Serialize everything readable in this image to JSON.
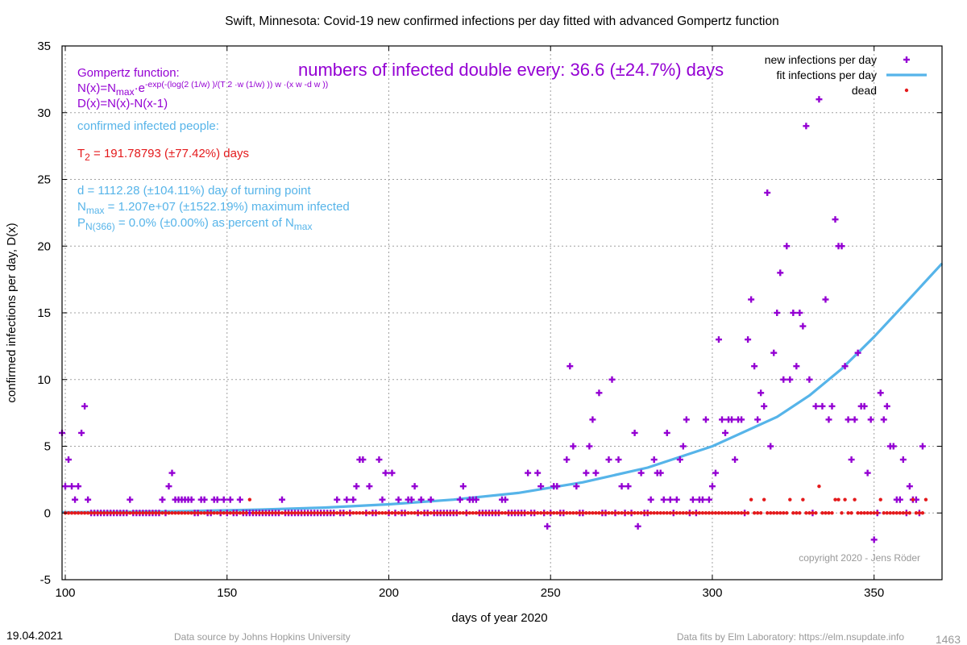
{
  "chart_data": {
    "type": "scatter",
    "title": "Swift,  Minnesota: Covid-19 new confirmed infections per day fitted with advanced Gompertz function",
    "xlabel": "days of year 2020",
    "ylabel": "confirmed infections per day, D(x)",
    "xlim": [
      99,
      371
    ],
    "ylim": [
      -5,
      35
    ],
    "x_ticks": [
      100,
      150,
      200,
      250,
      300,
      350
    ],
    "y_ticks": [
      -5,
      0,
      5,
      10,
      15,
      20,
      25,
      30,
      35
    ],
    "grid": true,
    "legend_position": "top-right",
    "series": [
      {
        "name": "new infections per day",
        "color": "#9400d3",
        "marker": "plus",
        "points": [
          [
            99,
            6
          ],
          [
            100,
            2
          ],
          [
            101,
            4
          ],
          [
            102,
            2
          ],
          [
            103,
            1
          ],
          [
            104,
            2
          ],
          [
            105,
            6
          ],
          [
            106,
            8
          ],
          [
            107,
            1
          ],
          [
            120,
            1
          ],
          [
            130,
            1
          ],
          [
            132,
            2
          ],
          [
            133,
            3
          ],
          [
            134,
            1
          ],
          [
            135,
            1
          ],
          [
            136,
            1
          ],
          [
            137,
            1
          ],
          [
            138,
            1
          ],
          [
            139,
            1
          ],
          [
            142,
            1
          ],
          [
            143,
            1
          ],
          [
            146,
            1
          ],
          [
            147,
            1
          ],
          [
            149,
            1
          ],
          [
            151,
            1
          ],
          [
            154,
            1
          ],
          [
            167,
            1
          ],
          [
            184,
            1
          ],
          [
            187,
            1
          ],
          [
            189,
            1
          ],
          [
            190,
            2
          ],
          [
            191,
            4
          ],
          [
            192,
            4
          ],
          [
            194,
            2
          ],
          [
            197,
            4
          ],
          [
            198,
            1
          ],
          [
            199,
            3
          ],
          [
            201,
            3
          ],
          [
            203,
            1
          ],
          [
            206,
            1
          ],
          [
            207,
            1
          ],
          [
            208,
            2
          ],
          [
            210,
            1
          ],
          [
            213,
            1
          ],
          [
            222,
            1
          ],
          [
            223,
            2
          ],
          [
            225,
            1
          ],
          [
            226,
            1
          ],
          [
            227,
            1
          ],
          [
            235,
            1
          ],
          [
            236,
            1
          ],
          [
            243,
            3
          ],
          [
            246,
            3
          ],
          [
            247,
            2
          ],
          [
            249,
            -1
          ],
          [
            251,
            2
          ],
          [
            252,
            2
          ],
          [
            255,
            4
          ],
          [
            256,
            11
          ],
          [
            257,
            5
          ],
          [
            258,
            2
          ],
          [
            261,
            3
          ],
          [
            262,
            5
          ],
          [
            263,
            7
          ],
          [
            264,
            3
          ],
          [
            265,
            9
          ],
          [
            268,
            4
          ],
          [
            269,
            10
          ],
          [
            271,
            4
          ],
          [
            272,
            2
          ],
          [
            274,
            2
          ],
          [
            276,
            6
          ],
          [
            277,
            -1
          ],
          [
            278,
            3
          ],
          [
            281,
            1
          ],
          [
            282,
            4
          ],
          [
            283,
            3
          ],
          [
            284,
            3
          ],
          [
            285,
            1
          ],
          [
            286,
            6
          ],
          [
            287,
            1
          ],
          [
            289,
            1
          ],
          [
            290,
            4
          ],
          [
            291,
            5
          ],
          [
            292,
            7
          ],
          [
            294,
            1
          ],
          [
            296,
            1
          ],
          [
            297,
            1
          ],
          [
            298,
            7
          ],
          [
            299,
            1
          ],
          [
            300,
            2
          ],
          [
            301,
            3
          ],
          [
            302,
            13
          ],
          [
            303,
            7
          ],
          [
            304,
            6
          ],
          [
            305,
            7
          ],
          [
            306,
            7
          ],
          [
            307,
            4
          ],
          [
            308,
            7
          ],
          [
            309,
            7
          ],
          [
            311,
            13
          ],
          [
            312,
            16
          ],
          [
            313,
            11
          ],
          [
            314,
            7
          ],
          [
            315,
            9
          ],
          [
            316,
            8
          ],
          [
            317,
            24
          ],
          [
            318,
            5
          ],
          [
            319,
            12
          ],
          [
            320,
            15
          ],
          [
            321,
            18
          ],
          [
            322,
            10
          ],
          [
            323,
            20
          ],
          [
            324,
            10
          ],
          [
            325,
            15
          ],
          [
            326,
            11
          ],
          [
            327,
            15
          ],
          [
            328,
            14
          ],
          [
            329,
            29
          ],
          [
            330,
            10
          ],
          [
            332,
            8
          ],
          [
            333,
            31
          ],
          [
            334,
            8
          ],
          [
            335,
            16
          ],
          [
            336,
            7
          ],
          [
            337,
            8
          ],
          [
            338,
            22
          ],
          [
            339,
            20
          ],
          [
            340,
            20
          ],
          [
            341,
            11
          ],
          [
            342,
            7
          ],
          [
            343,
            4
          ],
          [
            344,
            7
          ],
          [
            345,
            12
          ],
          [
            346,
            8
          ],
          [
            347,
            8
          ],
          [
            348,
            3
          ],
          [
            349,
            7
          ],
          [
            350,
            -2
          ],
          [
            352,
            9
          ],
          [
            353,
            7
          ],
          [
            354,
            8
          ],
          [
            355,
            5
          ],
          [
            356,
            5
          ],
          [
            357,
            1
          ],
          [
            358,
            1
          ],
          [
            359,
            4
          ],
          [
            361,
            2
          ],
          [
            362,
            1
          ],
          [
            363,
            1
          ],
          [
            365,
            5
          ]
        ],
        "baseline_zero_x_range": [
          100,
          365
        ]
      },
      {
        "name": "fit infections per day",
        "color": "#56b4e9",
        "line": true,
        "points": [
          [
            99,
            0.05
          ],
          [
            120,
            0.08
          ],
          [
            140,
            0.15
          ],
          [
            160,
            0.25
          ],
          [
            180,
            0.4
          ],
          [
            200,
            0.65
          ],
          [
            220,
            1.0
          ],
          [
            240,
            1.5
          ],
          [
            260,
            2.3
          ],
          [
            280,
            3.4
          ],
          [
            300,
            5.0
          ],
          [
            320,
            7.2
          ],
          [
            330,
            8.8
          ],
          [
            340,
            10.8
          ],
          [
            350,
            13.2
          ],
          [
            360,
            15.8
          ],
          [
            371,
            18.7
          ]
        ]
      },
      {
        "name": "dead",
        "color": "#e41a1c",
        "marker": "star",
        "points": [
          [
            157,
            1
          ],
          [
            312,
            1
          ],
          [
            316,
            1
          ],
          [
            324,
            1
          ],
          [
            328,
            1
          ],
          [
            333,
            2
          ],
          [
            338,
            1
          ],
          [
            339,
            1
          ],
          [
            341,
            1
          ],
          [
            344,
            1
          ],
          [
            352,
            1
          ],
          [
            362,
            1
          ],
          [
            366,
            1
          ]
        ],
        "baseline_zero_x_range": [
          100,
          366
        ]
      }
    ],
    "annotations": {
      "gompertz_heading": "Gompertz function:",
      "formula_n_lead": "N(x)=N",
      "formula_n_sub": "max",
      "formula_n_mid": "·e",
      "formula_n_sup": "-exp(-(log(2 (1/w) )/(T 2 ·w (1/w) )) w ·(x w -d w ))",
      "formula_d": "D(x)=N(x)-N(x-1)",
      "confirmed_heading": "confirmed infected people:",
      "t2_lead": "T",
      "t2_sub": "2",
      "t2_rest": " = 191.78793 (±77.42%) days",
      "d_line": "d = 1112.28 (±104.11%) day of turning point",
      "nmax_lead": "N",
      "nmax_sub": "max",
      "nmax_rest": " = 1.207e+07 (±1522.19%) maximum infected",
      "pn_lead": "P",
      "pn_sub": "N(366)",
      "pn_rest": " = 0.0% (±0.00%) as percent of N",
      "pn_tail_sub": "max",
      "doubling": "numbers of infected double every: 36.6 (±24.7%) days",
      "copyright": "copyright 2020 - Jens Röder"
    },
    "colors": {
      "formula": "#9400d3",
      "confirmed": "#56b4e9",
      "t2": "#e41a1c",
      "doubling": "#9400d3",
      "copyright": "#999999",
      "footer": "#999999"
    }
  },
  "footer": {
    "date": "19.04.2021",
    "source": "Data source by Johns Hopkins University",
    "fits": "Data fits by Elm Laboratory: https://elm.nsupdate.info",
    "id": "1463"
  }
}
